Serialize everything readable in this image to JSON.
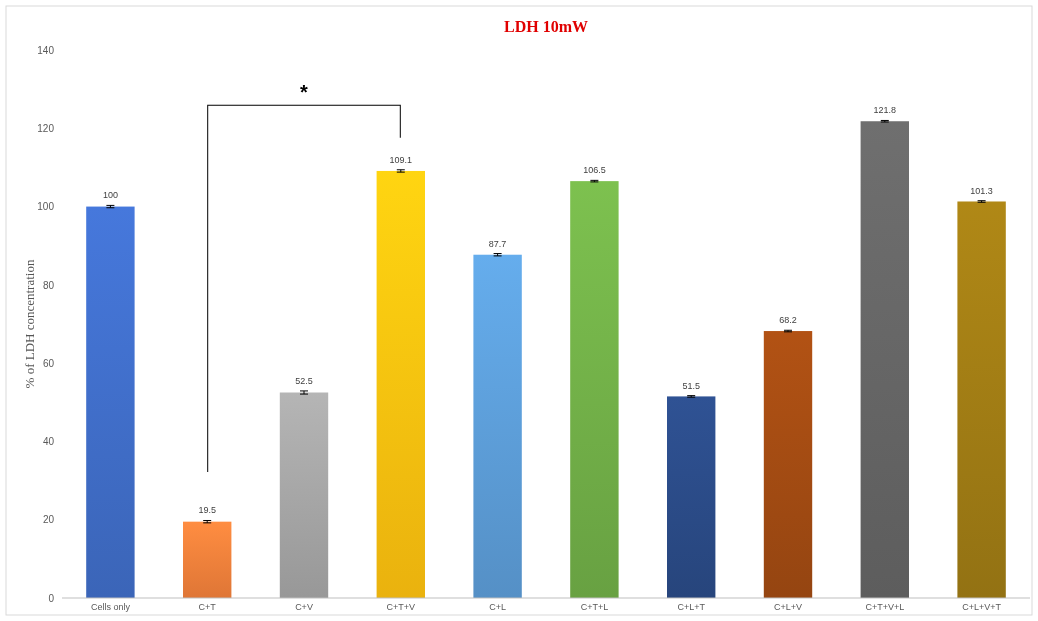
{
  "chart_data": {
    "type": "bar",
    "title": "LDH 10mW",
    "ylabel": "% of LDH concentration",
    "categories": [
      "Cells only",
      "C+T",
      "C+V",
      "C+T+V",
      "C+L",
      "C+T+L",
      "C+L+T",
      "C+L+V",
      "C+T+V+L",
      "C+L+V+T"
    ],
    "values": [
      100,
      19.5,
      52.5,
      109.1,
      87.7,
      106.5,
      51.5,
      68.2,
      121.8,
      101.3
    ],
    "colors": [
      "#3f6cc6",
      "#f07f3a",
      "#a3a3a3",
      "#fbbf0f",
      "#5b9bd5",
      "#70ad47",
      "#2a4a85",
      "#a04a12",
      "#646464",
      "#9e7a14"
    ],
    "errors": [
      0.3,
      0.3,
      0.4,
      0.3,
      0.3,
      0.2,
      0.2,
      0.2,
      0.2,
      0.2
    ],
    "data_labels": true,
    "ylim": [
      0,
      140
    ],
    "yticks": [
      0,
      20,
      40,
      60,
      80,
      100,
      120,
      140
    ],
    "grid": false,
    "annotations": [
      "*"
    ]
  }
}
